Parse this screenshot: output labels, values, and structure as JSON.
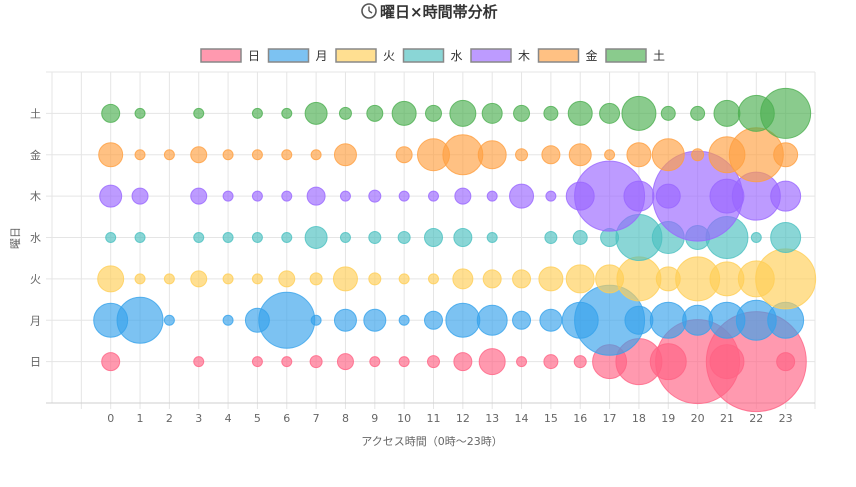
{
  "chart_data": {
    "type": "bubble",
    "title": "曜日×時間帯分析",
    "title_icon": "clock-icon",
    "xlabel": "アクセス時間（0時〜23時）",
    "ylabel": "曜日",
    "x_ticks": [
      "0",
      "1",
      "2",
      "3",
      "4",
      "5",
      "6",
      "7",
      "8",
      "9",
      "10",
      "11",
      "12",
      "13",
      "14",
      "15",
      "16",
      "17",
      "18",
      "19",
      "20",
      "21",
      "22",
      "23"
    ],
    "y_categories": [
      "日",
      "月",
      "火",
      "水",
      "木",
      "金",
      "土"
    ],
    "xlim": [
      -2,
      24
    ],
    "ylim": [
      -1,
      7
    ],
    "grid": true,
    "legend_position": "top",
    "size_note": "bubble radius per hour 0-23, 0 = no bubble",
    "series": [
      {
        "name": "日",
        "color": "#ff6384",
        "r": [
          9,
          0,
          0,
          5,
          0,
          5,
          5,
          6,
          8,
          5,
          5,
          6,
          9,
          13,
          5,
          7,
          6,
          17,
          23,
          18,
          42,
          17,
          50,
          9
        ]
      },
      {
        "name": "月",
        "color": "#36a2eb",
        "r": [
          17,
          23,
          5,
          0,
          5,
          12,
          28,
          5,
          11,
          11,
          5,
          9,
          17,
          15,
          9,
          11,
          18,
          35,
          14,
          18,
          15,
          18,
          20,
          18
        ]
      },
      {
        "name": "火",
        "color": "#ffce56",
        "r": [
          13,
          5,
          5,
          8,
          5,
          5,
          8,
          6,
          12,
          6,
          5,
          5,
          10,
          9,
          9,
          12,
          14,
          14,
          22,
          12,
          22,
          17,
          18,
          30
        ]
      },
      {
        "name": "水",
        "color": "#4bc0c0",
        "r": [
          5,
          5,
          0,
          5,
          5,
          5,
          5,
          11,
          5,
          6,
          6,
          9,
          9,
          5,
          0,
          6,
          7,
          9,
          23,
          16,
          12,
          21,
          5,
          15
        ]
      },
      {
        "name": "木",
        "color": "#9966ff",
        "r": [
          11,
          8,
          0,
          8,
          5,
          5,
          5,
          9,
          5,
          6,
          5,
          5,
          8,
          5,
          12,
          5,
          14,
          35,
          15,
          12,
          45,
          17,
          24,
          15
        ]
      },
      {
        "name": "金",
        "color": "#ff9f40",
        "r": [
          12,
          5,
          5,
          8,
          5,
          5,
          5,
          5,
          11,
          0,
          8,
          16,
          20,
          14,
          6,
          9,
          11,
          5,
          12,
          16,
          6,
          18,
          27,
          12
        ]
      },
      {
        "name": "土",
        "color": "#4caf50",
        "r": [
          9,
          5,
          0,
          5,
          0,
          5,
          5,
          11,
          6,
          8,
          12,
          8,
          13,
          10,
          8,
          7,
          12,
          10,
          17,
          7,
          7,
          13,
          18,
          25
        ]
      }
    ]
  }
}
